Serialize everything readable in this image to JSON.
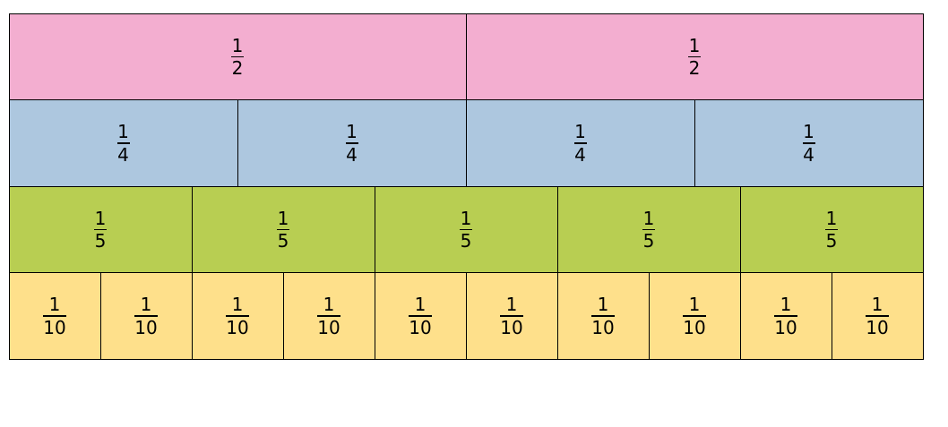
{
  "rows": [
    {
      "numerator": "1",
      "denominator": "2",
      "count": 2,
      "color": "#f3aed0"
    },
    {
      "numerator": "1",
      "denominator": "4",
      "count": 4,
      "color": "#adc7df"
    },
    {
      "numerator": "1",
      "denominator": "5",
      "count": 5,
      "color": "#b8ce52"
    },
    {
      "numerator": "1",
      "denominator": "10",
      "count": 10,
      "color": "#fee08b"
    }
  ]
}
